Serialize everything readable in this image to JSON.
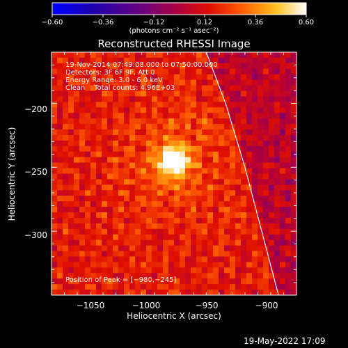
{
  "chart_data": {
    "type": "heatmap",
    "title": "Reconstructed RHESSI Image",
    "xlabel": "Heliocentric X (arcsec)",
    "ylabel": "Heliocentric Y (arcsec)",
    "xlim": [
      -1075,
      -885
    ],
    "ylim": [
      -350,
      -160
    ],
    "xticks": [
      -1050,
      -1000,
      -950,
      -900
    ],
    "yticks": [
      -200,
      -250,
      -300
    ],
    "colorbar": {
      "ticks": [
        -0.6,
        -0.36,
        -0.12,
        0.12,
        0.36,
        0.6
      ],
      "tick_labels": [
        "−0.60",
        "−0.36",
        "−0.12",
        "0.12",
        "0.36",
        "0.60"
      ],
      "range": [
        -0.6,
        0.6
      ],
      "units": "(photons cm⁻² s⁻¹ asec⁻²)"
    },
    "peak": {
      "x": -980,
      "y": -245,
      "value": 0.6
    },
    "annotations": [
      "19-Nov-2014 07:49:08.000 to 07:50:00.000",
      "Detectors: 3F 6F 9F, Att 0",
      "Energy Range: 3.0 - 6.0 keV",
      "Clean    Total counts: 4.96E+03"
    ],
    "peak_label": "Position of Peak = [−980,−245]",
    "limb": [
      [
        -955,
        -160
      ],
      [
        -940,
        -200
      ],
      [
        -925,
        -250
      ],
      [
        -912,
        -300
      ],
      [
        -899,
        -350
      ]
    ]
  },
  "x_tick_labels": [
    "−1050",
    "−1000",
    "−950",
    "−900"
  ],
  "y_tick_labels": [
    "−200",
    "−250",
    "−300"
  ],
  "timestamp": "19-May-2022 17:09",
  "colors": {
    "background": "#000000",
    "axes": "#ffffff",
    "limb": "#ffffff"
  }
}
